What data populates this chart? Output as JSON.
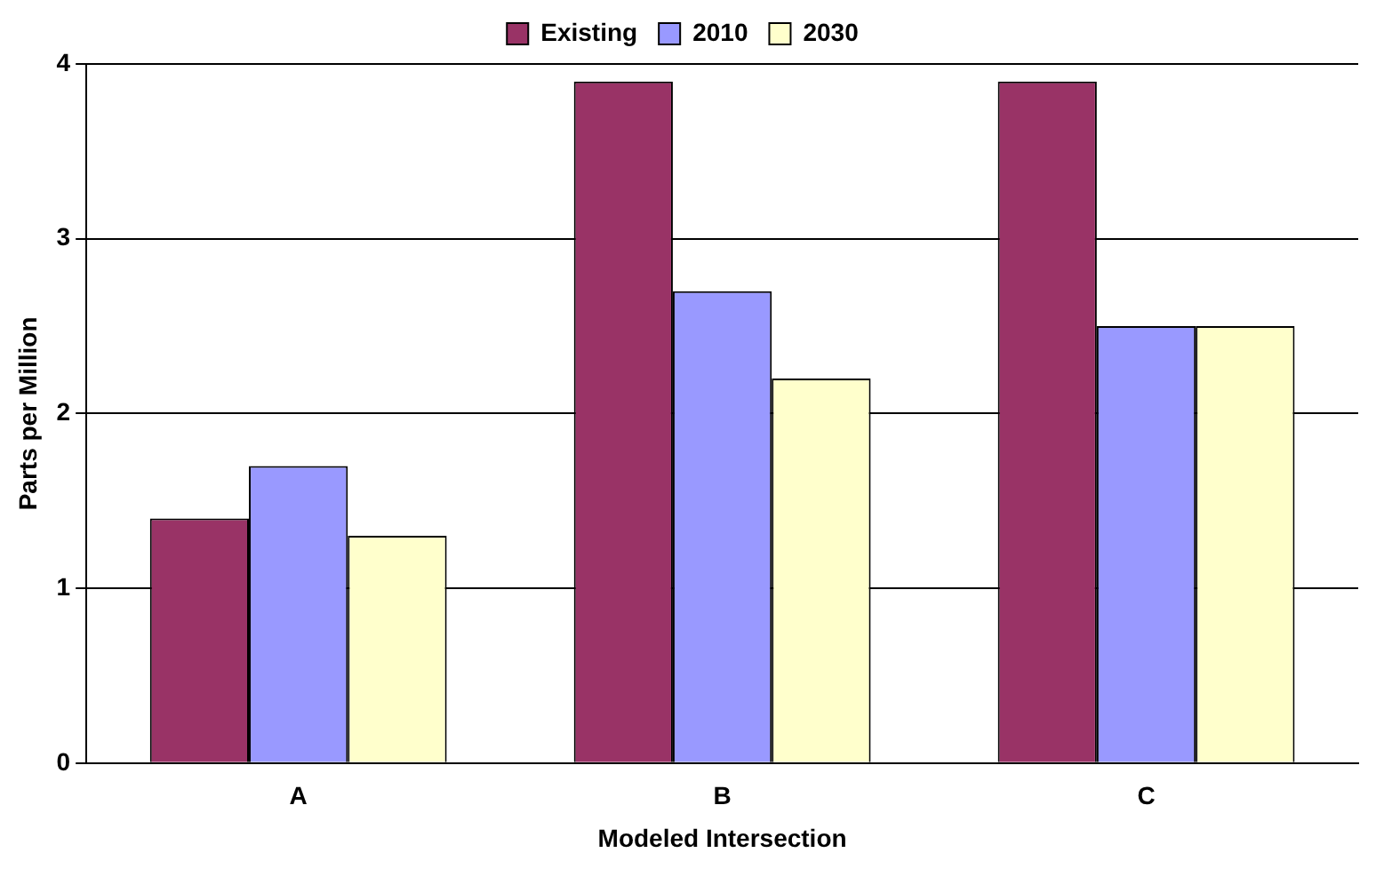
{
  "chart_data": {
    "type": "bar",
    "xlabel": "Modeled Intersection",
    "ylabel": "Parts per Million",
    "categories": [
      "A",
      "B",
      "C"
    ],
    "series": [
      {
        "name": "Existing",
        "color": "#993366",
        "values": [
          1.4,
          3.9,
          3.9
        ]
      },
      {
        "name": "2010",
        "color": "#9999ff",
        "values": [
          1.7,
          2.7,
          2.5
        ]
      },
      {
        "name": "2030",
        "color": "#ffffcc",
        "values": [
          1.3,
          2.2,
          2.5
        ]
      }
    ],
    "ylim": [
      0,
      4
    ],
    "yticks": [
      0,
      1,
      2,
      3,
      4
    ],
    "grid": "y",
    "legend": "top"
  }
}
